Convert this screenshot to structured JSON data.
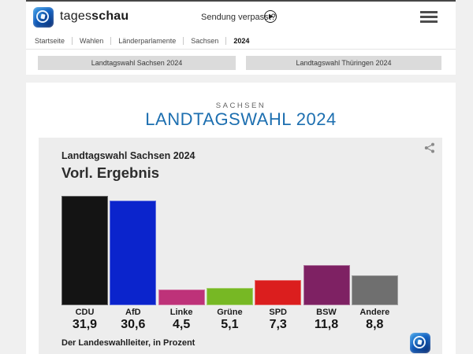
{
  "header": {
    "brand_prefix": "tages",
    "brand_suffix": "schau",
    "missed_show_label": "Sendung verpasst?"
  },
  "breadcrumb": [
    "Startseite",
    "Wahlen",
    "Länderparlamente",
    "Sachsen",
    "2024"
  ],
  "tabs": [
    {
      "label": "Landtagswahl Sachsen 2024"
    },
    {
      "label": "Landtagswahl Thüringen 2024"
    }
  ],
  "page": {
    "eyebrow": "SACHSEN",
    "title": "LANDTAGSWAHL 2024",
    "title_color": "#1d6fb0"
  },
  "chart_data": {
    "type": "bar",
    "title": "Landtagswahl Sachsen 2024",
    "subtitle": "Vorl. Ergebnis",
    "source": "Der Landeswahlleiter, in Prozent",
    "unit": "percent",
    "categories": [
      "CDU",
      "AfD",
      "Linke",
      "Grüne",
      "SPD",
      "BSW",
      "Andere"
    ],
    "values": [
      31.9,
      30.6,
      4.5,
      5.1,
      7.3,
      11.8,
      8.8
    ],
    "value_labels": [
      "31,9",
      "30,6",
      "4,5",
      "5,1",
      "7,3",
      "11,8",
      "8,8"
    ],
    "colors": [
      "#141414",
      "#0b24cc",
      "#be3279",
      "#77b824",
      "#db1e1e",
      "#7e2163",
      "#6f6f6f"
    ],
    "ylim": [
      0,
      32
    ],
    "grid": false,
    "legend": false
  }
}
